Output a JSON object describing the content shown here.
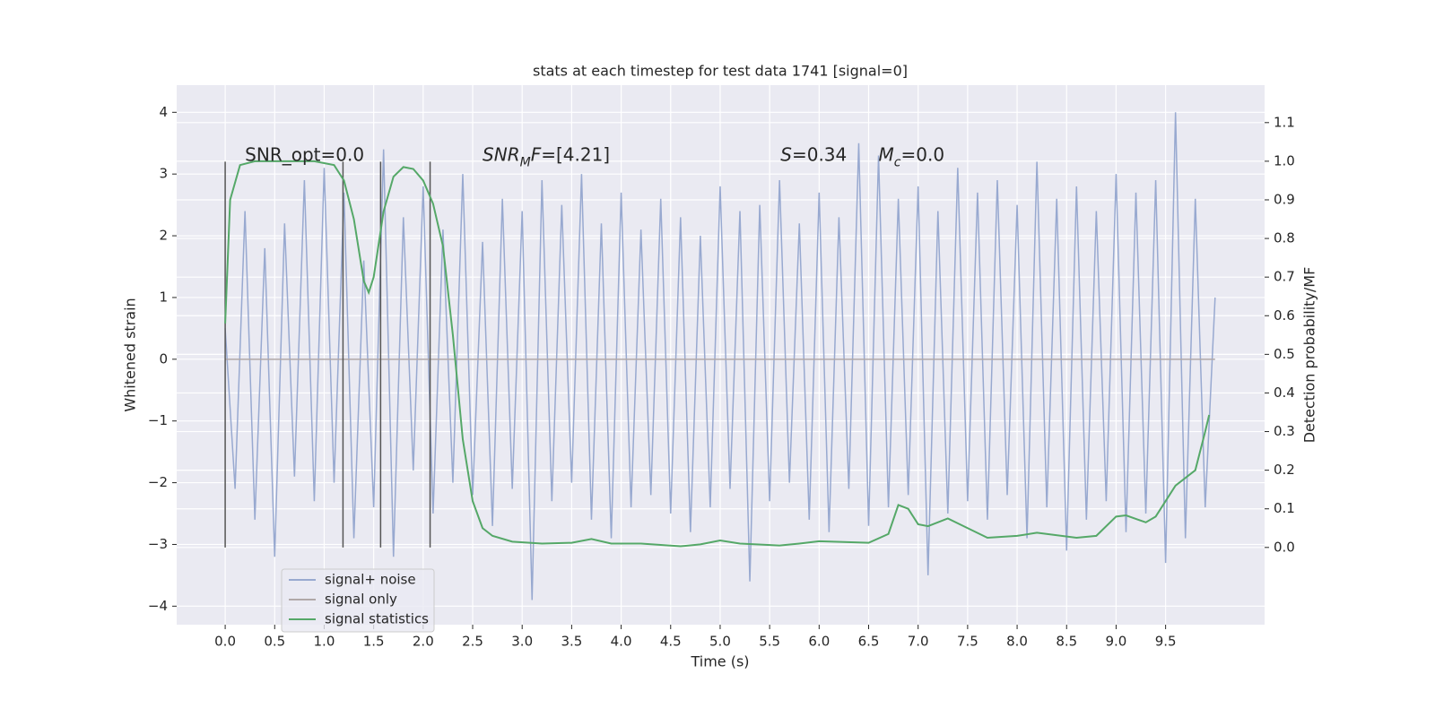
{
  "chart_data": {
    "type": "line",
    "title": "stats at each timestep for test data 1741 [signal=0]",
    "xlabel": "Time (s)",
    "ylabel": "Whitened strain",
    "y2label": "Detection probability/MF",
    "xlim": [
      -0.49,
      10.5
    ],
    "ylim": [
      -4.3,
      4.44
    ],
    "y2lim": [
      -0.2,
      1.197
    ],
    "xticks": [
      {
        "value": 0,
        "label": "0.0"
      },
      0.5,
      {
        "value": 1,
        "label": "1.0"
      },
      1.5,
      {
        "value": 2,
        "label": "2.0"
      },
      2.5,
      {
        "value": 3,
        "label": "3.0"
      },
      3.5,
      {
        "value": 4,
        "label": "4.0"
      },
      4.5,
      {
        "value": 5,
        "label": "5.0"
      },
      5.5,
      {
        "value": 6,
        "label": "6.0"
      },
      6.5,
      {
        "value": 7,
        "label": "7.0"
      },
      7.5,
      {
        "value": 8,
        "label": "8.0"
      },
      8.5,
      {
        "value": 9,
        "label": "9.0"
      },
      9.5
    ],
    "yticks": [
      {
        "value": -4,
        "label": "−4"
      },
      {
        "value": -3,
        "label": "−3"
      },
      {
        "value": -2,
        "label": "−2"
      },
      {
        "value": -1,
        "label": "−1"
      },
      0,
      1,
      2,
      3,
      4
    ],
    "y2ticks": [
      {
        "value": 0,
        "label": "0.0"
      },
      0.1,
      0.2,
      0.3,
      0.4,
      0.5,
      0.6,
      0.7,
      0.8,
      0.9,
      {
        "value": 1,
        "label": "1.0"
      },
      1.1
    ],
    "grid": true,
    "legend": "lower left",
    "series": [
      {
        "name": "signal+ noise",
        "color": "#98a9d0",
        "x": [
          0,
          0.1,
          0.2,
          0.3,
          0.4,
          0.5,
          0.6,
          0.7,
          0.8,
          0.9,
          1,
          1.1,
          1.2,
          1.3,
          1.4,
          1.5,
          1.6,
          1.7,
          1.8,
          1.9,
          2,
          2.1,
          2.2,
          2.3,
          2.4,
          2.5,
          2.6,
          2.7,
          2.8,
          2.9,
          3,
          3.1,
          3.2,
          3.3,
          3.4,
          3.5,
          3.6,
          3.7,
          3.8,
          3.9,
          4,
          4.1,
          4.2,
          4.3,
          4.4,
          4.5,
          4.6,
          4.7,
          4.8,
          4.9,
          5,
          5.1,
          5.2,
          5.3,
          5.4,
          5.5,
          5.6,
          5.7,
          5.8,
          5.9,
          6,
          6.1,
          6.2,
          6.3,
          6.4,
          6.5,
          6.6,
          6.7,
          6.8,
          6.9,
          7,
          7.1,
          7.2,
          7.3,
          7.4,
          7.5,
          7.6,
          7.7,
          7.8,
          7.9,
          8,
          8.1,
          8.2,
          8.3,
          8.4,
          8.5,
          8.6,
          8.7,
          8.8,
          8.9,
          9,
          9.1,
          9.2,
          9.3,
          9.4,
          9.5,
          9.6,
          9.7,
          9.8,
          9.9,
          10
        ],
        "values": [
          0.5,
          -2.1,
          2.4,
          -2.6,
          1.8,
          -3.2,
          2.2,
          -1.9,
          2.9,
          -2.3,
          3.1,
          -2.0,
          2.7,
          -2.9,
          1.6,
          -2.4,
          3.4,
          -3.2,
          2.3,
          -1.8,
          2.8,
          -2.5,
          2.1,
          -2.0,
          3.0,
          -2.2,
          1.9,
          -2.7,
          2.6,
          -2.1,
          2.4,
          -3.9,
          2.9,
          -2.3,
          2.5,
          -2.0,
          3.0,
          -2.6,
          2.2,
          -2.9,
          2.7,
          -2.4,
          2.1,
          -2.2,
          2.6,
          -2.5,
          2.3,
          -2.8,
          2.0,
          -2.4,
          2.8,
          -2.1,
          2.4,
          -3.6,
          2.5,
          -2.3,
          2.9,
          -2.0,
          2.2,
          -2.6,
          2.7,
          -2.8,
          2.3,
          -2.1,
          3.5,
          -2.7,
          3.3,
          -2.4,
          2.6,
          -2.2,
          2.8,
          -3.5,
          2.4,
          -2.5,
          3.1,
          -2.3,
          2.7,
          -2.6,
          2.9,
          -2.2,
          2.5,
          -2.9,
          3.2,
          -2.4,
          2.6,
          -3.1,
          2.8,
          -2.6,
          2.4,
          -2.3,
          3.0,
          -2.8,
          2.7,
          -2.5,
          2.9,
          -3.3,
          4.0,
          -2.9,
          2.6,
          -2.4,
          1.0
        ]
      },
      {
        "name": "signal only",
        "color": "#b0a8a8",
        "x": [
          0,
          10
        ],
        "values": [
          0,
          0
        ]
      },
      {
        "name": "signal statistics",
        "color": "#55a868",
        "axis": "y2",
        "x": [
          0,
          0.05,
          0.15,
          0.3,
          0.6,
          0.9,
          1.1,
          1.2,
          1.3,
          1.4,
          1.45,
          1.5,
          1.6,
          1.7,
          1.8,
          1.9,
          2.0,
          2.1,
          2.2,
          2.3,
          2.4,
          2.5,
          2.6,
          2.7,
          2.9,
          3.2,
          3.5,
          3.7,
          3.9,
          4.2,
          4.6,
          4.8,
          5.0,
          5.2,
          5.6,
          5.8,
          6.0,
          6.5,
          6.7,
          6.8,
          6.9,
          7.0,
          7.1,
          7.3,
          7.5,
          7.7,
          8.0,
          8.2,
          8.6,
          8.8,
          9.0,
          9.1,
          9.3,
          9.4,
          9.6,
          9.8,
          9.9,
          9.94
        ],
        "values": [
          0.58,
          0.9,
          0.99,
          1.0,
          1.0,
          1.0,
          0.99,
          0.95,
          0.85,
          0.69,
          0.66,
          0.7,
          0.87,
          0.96,
          0.985,
          0.98,
          0.95,
          0.89,
          0.78,
          0.55,
          0.28,
          0.12,
          0.05,
          0.03,
          0.015,
          0.01,
          0.012,
          0.022,
          0.01,
          0.01,
          0.003,
          0.008,
          0.018,
          0.01,
          0.005,
          0.01,
          0.016,
          0.012,
          0.035,
          0.11,
          0.1,
          0.06,
          0.055,
          0.075,
          0.05,
          0.025,
          0.03,
          0.038,
          0.025,
          0.03,
          0.08,
          0.083,
          0.065,
          0.08,
          0.16,
          0.2,
          0.3,
          0.343
        ]
      }
    ],
    "vlines": {
      "x": [
        0,
        1.19,
        1.57,
        2.07
      ],
      "ymin": -3.05,
      "ymax": 3.2,
      "color": "#555555"
    },
    "annotations": [
      {
        "x": 0.2,
        "y": 3.3,
        "parts": [
          {
            "text": "SNR_opt=0.0"
          }
        ]
      },
      {
        "x": 2.6,
        "y": 3.3,
        "parts": [
          {
            "text": "SNR",
            "italic": true
          },
          {
            "text": "M",
            "italic": true,
            "sub": true
          },
          {
            "text": "F",
            "italic": true
          },
          {
            "text": "=[4.21]"
          }
        ]
      },
      {
        "x": 5.61,
        "y": 3.3,
        "parts": [
          {
            "text": "S",
            "italic": true
          },
          {
            "text": "=0.34"
          }
        ]
      },
      {
        "x": 6.6,
        "y": 3.3,
        "parts": [
          {
            "text": "M",
            "italic": true
          },
          {
            "text": "c",
            "italic": true,
            "sub": true
          },
          {
            "text": "=0.0"
          }
        ]
      }
    ]
  }
}
